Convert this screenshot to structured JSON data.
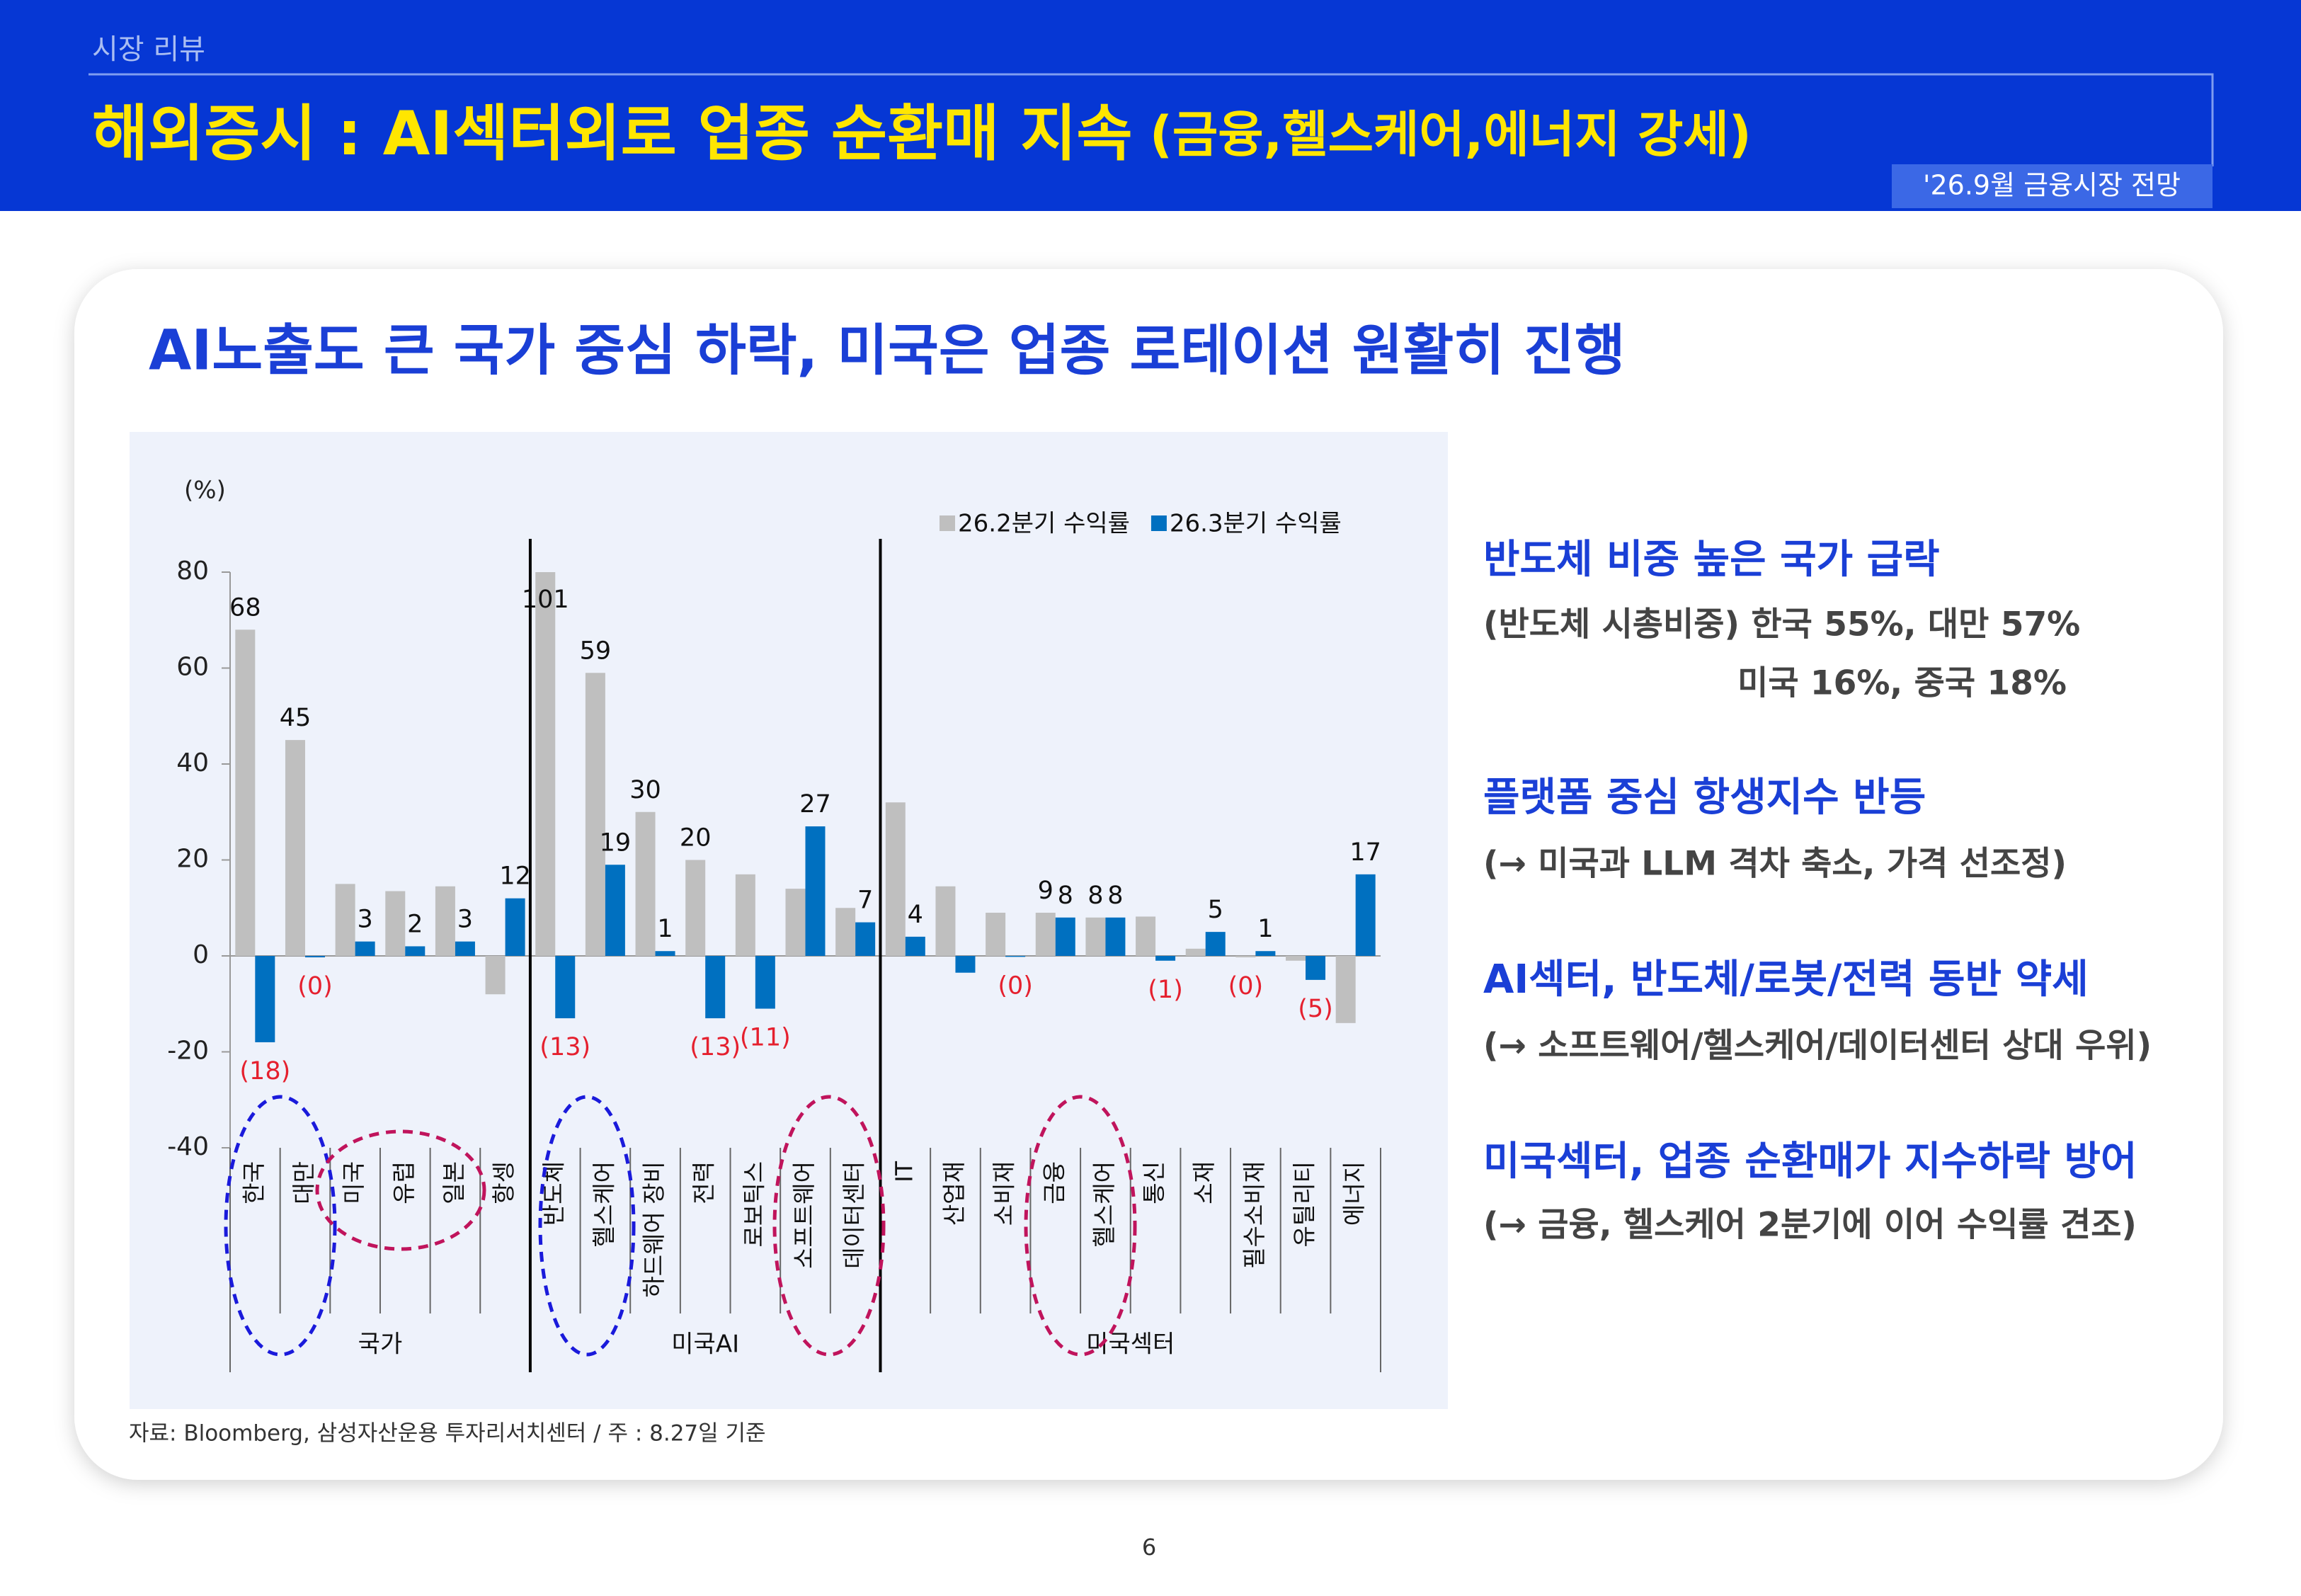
{
  "header": {
    "section": "시장 리뷰",
    "title_main": "해외증시 : AI섹터외로 업종 순환매 지속",
    "title_sub": " (금융,헬스케어,에너지 강세)",
    "tag": "'26.9월 금융시장 전망"
  },
  "card_title": "AI노출도 큰 국가 중심 하락, 미국은 업종 로테이션 원활히 진행",
  "chart_data": {
    "type": "bar",
    "y_unit": "(%)",
    "groups": [
      {
        "label": "국가",
        "categories": [
          "한국",
          "대만",
          "미국",
          "유럽",
          "일본",
          "항셍"
        ]
      },
      {
        "label": "미국AI",
        "categories": [
          "반도체",
          "헬스케어",
          "하드웨어 장비",
          "전력",
          "로보틱스",
          "소프트웨어",
          "데이터센터"
        ]
      },
      {
        "label": "미국섹터",
        "categories": [
          "IT",
          "산업재",
          "소비재",
          "금융",
          "헬스케어",
          "통신",
          "소재",
          "필수소비재",
          "유틸리티",
          "에너지"
        ]
      }
    ],
    "series": [
      {
        "name": "26.2분기 수익률",
        "color": "#bfbfbf",
        "values": [
          68,
          45,
          15,
          13.5,
          14.5,
          -8,
          101,
          59,
          30,
          20,
          17,
          14,
          10,
          32,
          14.5,
          9,
          9,
          8,
          8.2,
          1.5,
          -0.3,
          -1,
          -14
        ],
        "value_labels": [
          "68",
          "45",
          null,
          null,
          null,
          null,
          "101",
          "59",
          "30",
          "20",
          null,
          null,
          null,
          null,
          null,
          null,
          "9",
          "8",
          null,
          null,
          "(0)",
          null,
          null
        ]
      },
      {
        "name": "26.3분기 수익률",
        "color": "#0070c0",
        "values": [
          -18,
          -0.3,
          3,
          2,
          3,
          12,
          -13,
          19,
          1,
          -13,
          -11,
          27,
          7,
          4,
          -3.5,
          -0.2,
          8,
          8,
          -1,
          5,
          1,
          -5,
          17
        ],
        "value_labels": [
          "(18)",
          "(0)",
          "3",
          "2",
          "3",
          "12",
          "(13)",
          "19",
          "1",
          "(13)",
          "(11)",
          "27",
          "7",
          "4",
          null,
          "(0)",
          "8",
          "8",
          "(1)",
          "5",
          "1",
          "(5)",
          "17"
        ]
      }
    ],
    "ylim": [
      -40,
      80
    ],
    "yticks": [
      -40,
      -20,
      0,
      20,
      40,
      60,
      80
    ],
    "legend": "top-right"
  },
  "notes": [
    {
      "heading": "반도체 비중 높은 국가 급락",
      "lines": [
        "(반도체 시총비중) 한국 55%, 대만 57%",
        "미국 16%, 중국 18%"
      ]
    },
    {
      "heading": "플랫폼 중심 항생지수 반등",
      "lines": [
        "(→ 미국과 LLM 격차 축소, 가격 선조정)"
      ]
    },
    {
      "heading": "AI섹터, 반도체/로봇/전력 동반 약세",
      "lines": [
        "(→ 소프트웨어/헬스케어/데이터센터 상대 우위)"
      ]
    },
    {
      "heading": "미국섹터, 업종 순환매가 지수하락 방어",
      "lines": [
        "(→ 금융, 헬스케어 2분기에 이어 수익률 견조)"
      ]
    }
  ],
  "source": "자료: Bloomberg, 삼성자산운용 투자리서치센터 / 주 : 8.27일 기준",
  "page_number": "6"
}
